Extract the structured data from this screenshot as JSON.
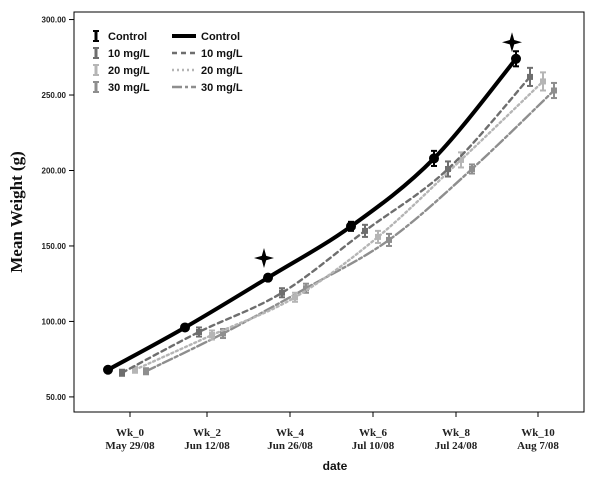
{
  "chart_data": {
    "type": "line",
    "xlabel": "date",
    "ylabel": "Mean Weight (g)",
    "categories": [
      {
        "week": "Wk_0",
        "date": "May 29/08"
      },
      {
        "week": "Wk_2",
        "date": "Jun 12/08"
      },
      {
        "week": "Wk_4",
        "date": "Jun 26/08"
      },
      {
        "week": "Wk_6",
        "date": "Jul 10/08"
      },
      {
        "week": "Wk_8",
        "date": "Jul 24/08"
      },
      {
        "week": "Wk_10",
        "date": "Aug 7/08"
      }
    ],
    "ylim": [
      40,
      305
    ],
    "yticks": [
      "50.00",
      "100.00",
      "150.00",
      "200.00",
      "250.00",
      "300.00"
    ],
    "grid": false,
    "legend_position": "top-left",
    "series": [
      {
        "name": "Control",
        "color": "#000000",
        "style": "solid",
        "values": [
          68,
          96,
          129,
          163,
          208,
          274
        ],
        "error": [
          1,
          2,
          2,
          3,
          5,
          5
        ]
      },
      {
        "name": "10 mg/L",
        "color": "#6e6e6e",
        "style": "dashed",
        "values": [
          66,
          93,
          119,
          160,
          201,
          262
        ],
        "error": [
          2,
          3,
          3,
          4,
          5,
          6
        ]
      },
      {
        "name": "20 mg/L",
        "color": "#b5b5b5",
        "style": "dotted",
        "values": [
          68,
          91,
          116,
          156,
          207,
          259
        ],
        "error": [
          2,
          3,
          3,
          4,
          5,
          6
        ]
      },
      {
        "name": "30 mg/L",
        "color": "#8e8e8e",
        "style": "dashdot",
        "values": [
          67,
          92,
          122,
          154,
          201,
          253
        ],
        "error": [
          2,
          3,
          3,
          4,
          3,
          5
        ]
      }
    ],
    "annotations": [
      {
        "symbol": "star",
        "category": "Wk_4",
        "value": 142
      },
      {
        "symbol": "star",
        "category": "Wk_10",
        "value": 285
      }
    ]
  }
}
